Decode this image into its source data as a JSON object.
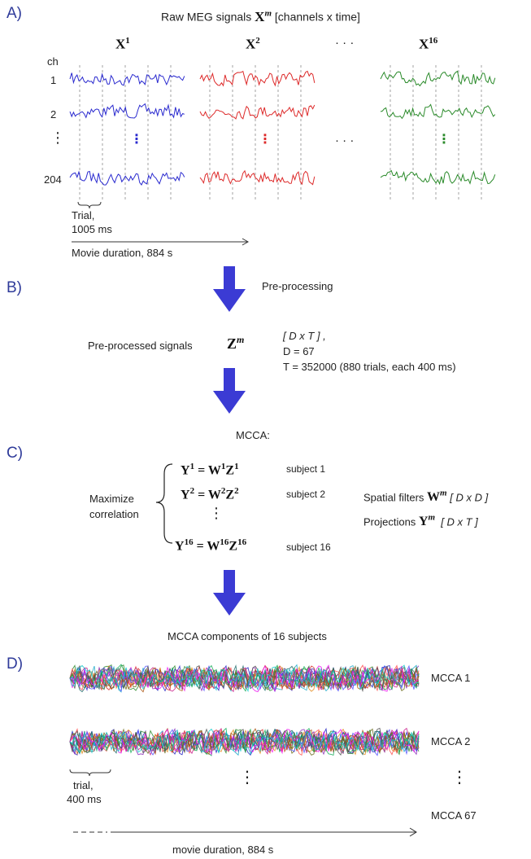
{
  "panels": {
    "a": "A)",
    "b": "B)",
    "c": "C)",
    "d": "D)"
  },
  "section_a": {
    "title_text": "Raw MEG signals",
    "title_var": "X",
    "title_sup": "m",
    "title_suffix": "[channels x time]",
    "subjects": [
      {
        "var": "X",
        "sup": "1",
        "color": "#2a2acf"
      },
      {
        "var": "X",
        "sup": "2",
        "color": "#dd2a2a"
      },
      {
        "var": "X",
        "sup": "16",
        "color": "#2a8a2a"
      }
    ],
    "ellipsis": "· · ·",
    "ch_header": "ch",
    "channels": [
      "1",
      "2",
      "204"
    ],
    "vdots": "⋮",
    "trial_label_1": "Trial,",
    "trial_label_2": "1005 ms",
    "movie_label": "Movie duration, 884 s"
  },
  "section_b": {
    "step_label": "Pre-processing",
    "signals_text": "Pre-processed signals",
    "var": "Z",
    "sup": "m",
    "dims": "[ D x T ] ,",
    "d_line": "D = 67",
    "t_line": "T = 352000 (880 trials, each 400 ms)"
  },
  "section_c": {
    "title": "MCCA:",
    "maximize_1": "Maximize",
    "maximize_2": "correlation",
    "equations": [
      {
        "lhs": "Y",
        "lhs_sup": "1",
        "w_sup": "1",
        "z_sup": "1",
        "subject": "subject 1"
      },
      {
        "lhs": "Y",
        "lhs_sup": "2",
        "w_sup": "2",
        "z_sup": "2",
        "subject": "subject 2"
      },
      {
        "lhs": "Y",
        "lhs_sup": "16",
        "w_sup": "16",
        "z_sup": "16",
        "subject": "subject 16"
      }
    ],
    "filters_text": "Spatial filters",
    "filters_var": "W",
    "filters_sup": "m",
    "filters_dims": "[ D x D ]",
    "proj_text": "Projections",
    "proj_var": "Y",
    "proj_sup": "m",
    "proj_dims": "[ D x T ]"
  },
  "section_d": {
    "title": "MCCA components of 16 subjects",
    "components": [
      "MCCA 1",
      "MCCA 2",
      "MCCA 67"
    ],
    "trial_label_1": "trial,",
    "trial_label_2": "400 ms",
    "movie_label": "movie duration, 884 s"
  },
  "colors": {
    "arrow": "#3b3bd4",
    "panel_label": "#2f3b9a",
    "subject_palette": [
      "#1f1fbf",
      "#d62a2a",
      "#2a8a2a",
      "#e28a1a",
      "#8a2ab8",
      "#1aa8c8",
      "#c81a8a",
      "#6a6a1a",
      "#1a6a6a",
      "#ff4f4f",
      "#4f4fff",
      "#11aa55",
      "#aa5511",
      "#555555",
      "#ee11ee",
      "#11cccc"
    ]
  }
}
